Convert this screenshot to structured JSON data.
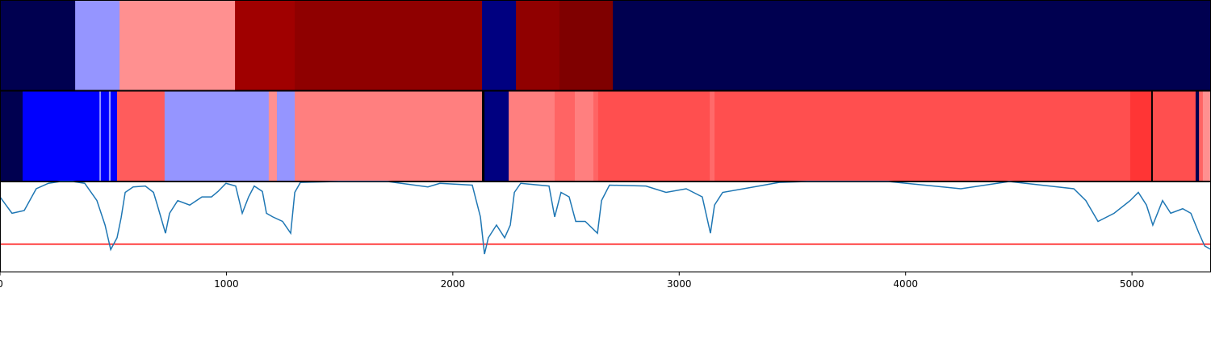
{
  "chart_data": [
    {
      "type": "band",
      "xlim": [
        0,
        5349
      ],
      "segments": [
        {
          "start": 0,
          "end": 332,
          "color": "#000050"
        },
        {
          "start": 332,
          "end": 528,
          "color": "#9595ff"
        },
        {
          "start": 528,
          "end": 1038,
          "color": "#ff9090"
        },
        {
          "start": 1038,
          "end": 1302,
          "color": "#a00000"
        },
        {
          "start": 1302,
          "end": 2129,
          "color": "#8f0000"
        },
        {
          "start": 2129,
          "end": 2279,
          "color": "#000080"
        },
        {
          "start": 2279,
          "end": 2471,
          "color": "#900000"
        },
        {
          "start": 2471,
          "end": 2707,
          "color": "#7f0000"
        },
        {
          "start": 2707,
          "end": 5349,
          "color": "#000050"
        }
      ]
    },
    {
      "type": "band",
      "xlim": [
        0,
        5349
      ],
      "segments": [
        {
          "start": 0,
          "end": 100,
          "color": "#000050"
        },
        {
          "start": 100,
          "end": 439,
          "color": "#0000ff"
        },
        {
          "start": 439,
          "end": 446,
          "color": "#9595ff"
        },
        {
          "start": 446,
          "end": 481,
          "color": "#0000ff"
        },
        {
          "start": 481,
          "end": 489,
          "color": "#9595ff"
        },
        {
          "start": 489,
          "end": 517,
          "color": "#0000ff"
        },
        {
          "start": 517,
          "end": 727,
          "color": "#ff5c5c"
        },
        {
          "start": 727,
          "end": 1187,
          "color": "#9595ff"
        },
        {
          "start": 1187,
          "end": 1223,
          "color": "#ff9090"
        },
        {
          "start": 1223,
          "end": 1302,
          "color": "#9595ff"
        },
        {
          "start": 1302,
          "end": 2129,
          "color": "#ff7f7f"
        },
        {
          "start": 2129,
          "end": 2140,
          "color": "#000000"
        },
        {
          "start": 2140,
          "end": 2247,
          "color": "#000080"
        },
        {
          "start": 2247,
          "end": 2450,
          "color": "#ff7f7f"
        },
        {
          "start": 2450,
          "end": 2539,
          "color": "#ff6464"
        },
        {
          "start": 2539,
          "end": 2621,
          "color": "#ff7f7f"
        },
        {
          "start": 2621,
          "end": 2642,
          "color": "#ff6464"
        },
        {
          "start": 2642,
          "end": 3135,
          "color": "#ff4f4f"
        },
        {
          "start": 3135,
          "end": 3156,
          "color": "#ff6a6a"
        },
        {
          "start": 3156,
          "end": 4992,
          "color": "#ff4f4f"
        },
        {
          "start": 4992,
          "end": 5085,
          "color": "#ff3535"
        },
        {
          "start": 5085,
          "end": 5092,
          "color": "#000000"
        },
        {
          "start": 5092,
          "end": 5281,
          "color": "#ff4f4f"
        },
        {
          "start": 5281,
          "end": 5296,
          "color": "#000050"
        },
        {
          "start": 5296,
          "end": 5313,
          "color": "#ff6464"
        },
        {
          "start": 5313,
          "end": 5349,
          "color": "#ff9090"
        }
      ]
    },
    {
      "type": "line",
      "xlim": [
        0,
        5349
      ],
      "ylim": [
        0,
        1
      ],
      "xticks": [
        0,
        1000,
        2000,
        3000,
        4000,
        5000
      ],
      "x": [
        0,
        53,
        107,
        160,
        214,
        267,
        321,
        374,
        428,
        464,
        489,
        517,
        535,
        553,
        588,
        642,
        678,
        695,
        731,
        749,
        785,
        838,
        892,
        934,
        963,
        998,
        1041,
        1070,
        1098,
        1123,
        1159,
        1177,
        1205,
        1248,
        1284,
        1302,
        1327,
        1498,
        1712,
        1890,
        1943,
        2086,
        2122,
        2140,
        2157,
        2193,
        2229,
        2254,
        2272,
        2300,
        2425,
        2450,
        2478,
        2514,
        2543,
        2585,
        2639,
        2657,
        2692,
        2853,
        2942,
        3031,
        3102,
        3138,
        3156,
        3192,
        3352,
        3441,
        3566,
        3923,
        4244,
        4458,
        4743,
        4796,
        4850,
        4921,
        4992,
        5028,
        5064,
        5092,
        5135,
        5171,
        5224,
        5260,
        5296,
        5321,
        5349
      ],
      "series": [
        {
          "color": "#1f77b4",
          "values": [
            0.83,
            0.65,
            0.68,
            0.92,
            0.98,
            1,
            1,
            0.98,
            0.79,
            0.52,
            0.25,
            0.38,
            0.6,
            0.88,
            0.94,
            0.95,
            0.88,
            0.74,
            0.43,
            0.65,
            0.79,
            0.74,
            0.83,
            0.83,
            0.89,
            0.98,
            0.95,
            0.65,
            0.83,
            0.95,
            0.89,
            0.65,
            0.61,
            0.56,
            0.43,
            0.88,
            0.99,
            1,
            1,
            0.94,
            0.98,
            0.96,
            0.61,
            0.2,
            0.38,
            0.52,
            0.38,
            0.52,
            0.88,
            0.98,
            0.95,
            0.61,
            0.88,
            0.83,
            0.56,
            0.56,
            0.43,
            0.79,
            0.96,
            0.95,
            0.88,
            0.92,
            0.83,
            0.43,
            0.74,
            0.88,
            0.95,
            0.99,
            1,
            1,
            0.92,
            1,
            0.92,
            0.79,
            0.56,
            0.65,
            0.79,
            0.88,
            0.74,
            0.52,
            0.79,
            0.65,
            0.7,
            0.65,
            0.43,
            0.29,
            0.25
          ]
        }
      ],
      "threshold": {
        "value": 0.31,
        "color": "#ff0000"
      }
    }
  ]
}
